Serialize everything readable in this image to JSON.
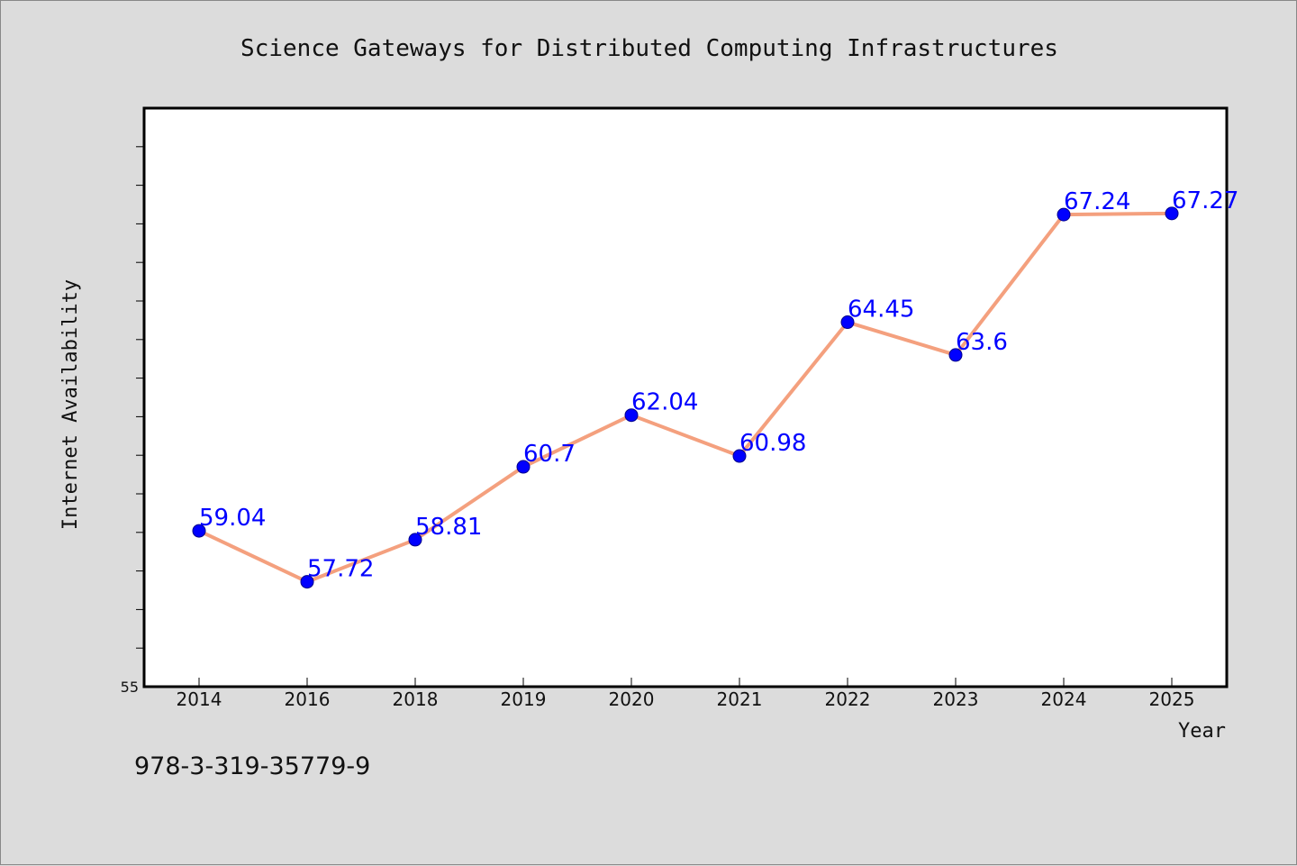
{
  "footnote": "978-3-319-35779-9",
  "colors": {
    "background": "#dcdcdc",
    "plot_background": "#ffffff",
    "line": "#f4a07e",
    "marker": "#0000ff",
    "label": "#0000ff"
  },
  "chart_data": {
    "type": "line",
    "title": "Science Gateways for Distributed Computing Infrastructures",
    "xlabel": "Year",
    "ylabel": "Internet Availability",
    "categories": [
      "2014",
      "2016",
      "2018",
      "2019",
      "2020",
      "2021",
      "2022",
      "2023",
      "2024",
      "2025"
    ],
    "series": [
      {
        "values": [
          59.04,
          57.72,
          58.81,
          60.7,
          62.04,
          60.98,
          64.45,
          63.6,
          67.24,
          67.27
        ]
      }
    ],
    "data_labels": [
      "59.04",
      "57.72",
      "58.81",
      "60.7",
      "62.04",
      "60.98",
      "64.45",
      "63.6",
      "67.24",
      "67.27"
    ],
    "ylim": [
      55,
      70
    ],
    "y_tick_labels": [
      "55"
    ],
    "grid": false,
    "legend": "none"
  }
}
